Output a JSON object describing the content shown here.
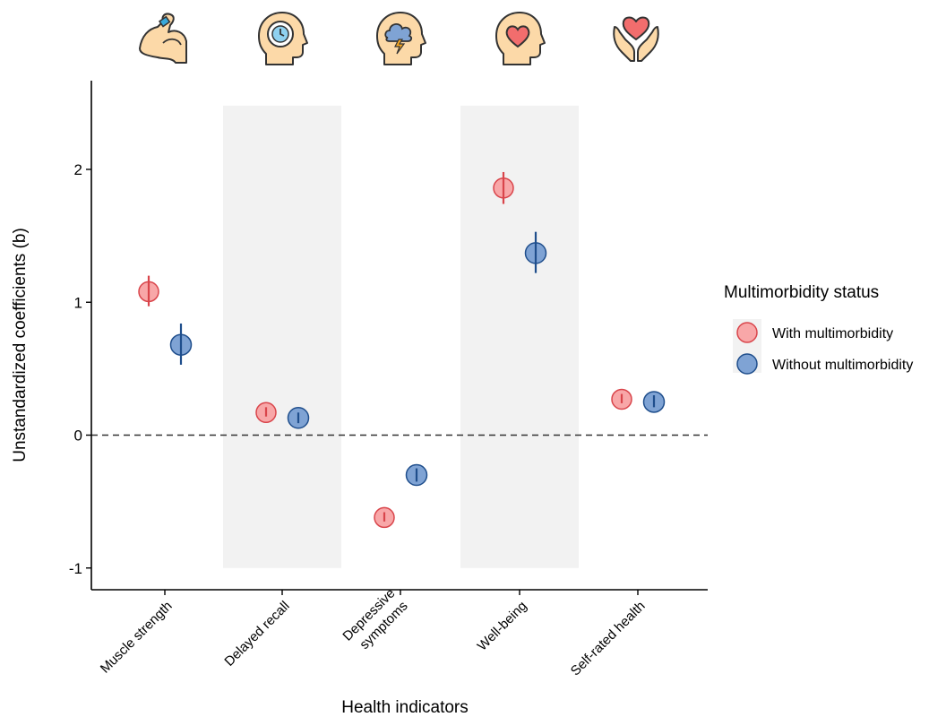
{
  "chart_data": {
    "type": "scatter",
    "title": "",
    "xlabel": "Health indicators",
    "ylabel": "Unstandardized coefficients (b)",
    "ylim": [
      -1.15,
      2.65
    ],
    "yticks": [
      "-1",
      "0",
      "1",
      "2"
    ],
    "categories": [
      "Muscle strength",
      "Delayed recall",
      "Depressive symptoms",
      "Well-being",
      "Self-rated health"
    ],
    "category_lines": [
      [
        "Muscle strength"
      ],
      [
        "Delayed recall"
      ],
      [
        "Depressive",
        "symptoms"
      ],
      [
        "Well-being"
      ],
      [
        "Self-rated health"
      ]
    ],
    "category_icons": [
      "flexed-arm-icon",
      "head-clock-icon",
      "head-storm-cloud-icon",
      "head-heart-icon",
      "hands-heart-icon"
    ],
    "shaded_categories": [
      "Delayed recall",
      "Well-being"
    ],
    "reference_line": 0,
    "grid": false,
    "legend": {
      "title": "Multimorbidity status",
      "position": "right"
    },
    "series": [
      {
        "name": "With multimorbidity",
        "fill": "#F8A7A8",
        "stroke": "#D9454B",
        "values": [
          1.08,
          0.17,
          -0.62,
          1.86,
          0.27
        ],
        "ci_low": [
          0.97,
          0.14,
          -0.65,
          1.74,
          0.24
        ],
        "ci_high": [
          1.2,
          0.21,
          -0.58,
          1.98,
          0.31
        ]
      },
      {
        "name": "Without multimorbidity",
        "fill": "#7FA3D4",
        "stroke": "#1F4E8C",
        "values": [
          0.68,
          0.13,
          -0.3,
          1.37,
          0.25
        ],
        "ci_low": [
          0.53,
          0.09,
          -0.35,
          1.22,
          0.21
        ],
        "ci_high": [
          0.84,
          0.17,
          -0.25,
          1.53,
          0.3
        ]
      }
    ]
  }
}
